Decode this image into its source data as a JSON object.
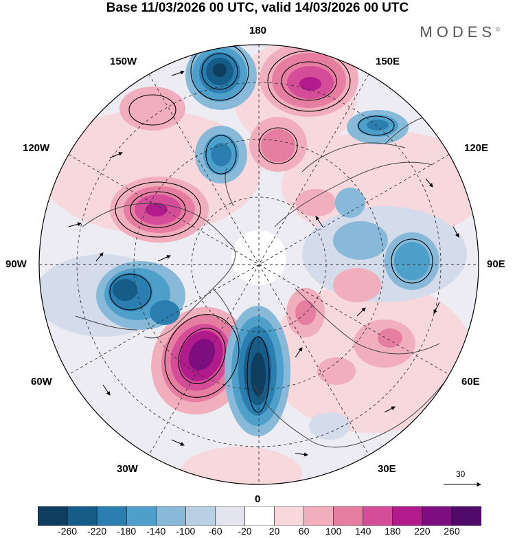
{
  "header": {
    "title": "Base 11/03/2026 00 UTC, valid 14/03/2026 00 UTC",
    "brand": "MODES",
    "brand_mark": "©"
  },
  "map": {
    "projection": "north-polar-stereographic",
    "longitude_labels": {
      "top": "180",
      "bottom": "0",
      "left": "90W",
      "right": "90E",
      "upper_left": "150W",
      "left_upper": "120W",
      "upper_right": "150E",
      "right_upper": "120E",
      "lower_left": "60W",
      "bottom_left": "30W",
      "lower_right": "60E",
      "bottom_right": "30E"
    },
    "reference_vector_label": "30"
  },
  "colorbar": {
    "tick_labels": [
      "-260",
      "-220",
      "-180",
      "-140",
      "-100",
      "-60",
      "-20",
      "20",
      "60",
      "100",
      "140",
      "180",
      "220",
      "260"
    ],
    "colors": [
      "#0d3e5f",
      "#155d88",
      "#2a7fb0",
      "#4f9fcb",
      "#89b9d8",
      "#b9cfe3",
      "#e4e4ef",
      "#ffffff",
      "#f7d8dd",
      "#f1aebc",
      "#e67ea2",
      "#d54d98",
      "#b21b8b",
      "#7e0e80",
      "#4f0a6a"
    ]
  }
}
